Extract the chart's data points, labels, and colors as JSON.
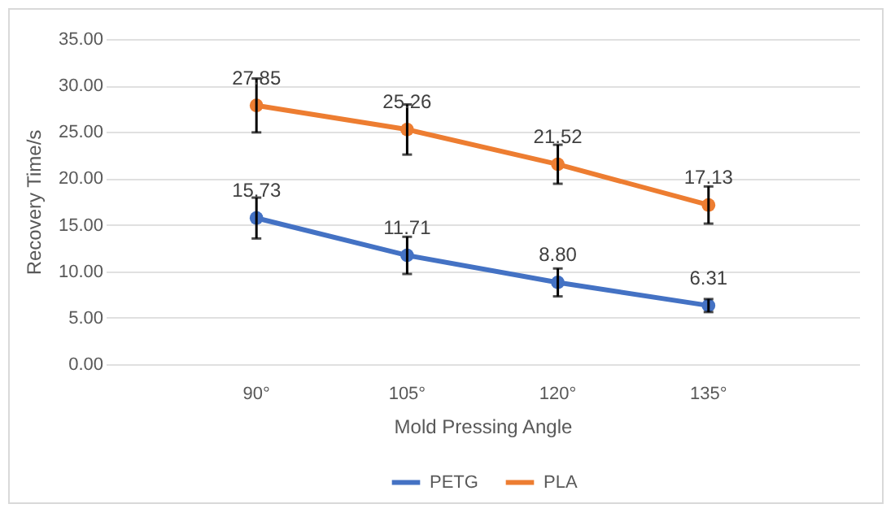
{
  "chart_data": {
    "type": "line",
    "xlabel": "Mold Pressing Angle",
    "ylabel": "Recovery Time/s",
    "categories": [
      "90°",
      "105°",
      "120°",
      "135°"
    ],
    "series": [
      {
        "name": "PETG",
        "color": "#4472c4",
        "values": [
          15.73,
          11.71,
          8.8,
          6.31
        ],
        "errors": [
          2.2,
          2.0,
          1.5,
          0.7
        ],
        "value_labels": [
          "15.73",
          "11.71",
          "8.80",
          "6.31"
        ]
      },
      {
        "name": "PLA",
        "color": "#ed7d31",
        "values": [
          27.85,
          25.26,
          21.52,
          17.13
        ],
        "errors": [
          2.9,
          2.7,
          2.1,
          2.0
        ],
        "value_labels": [
          "27.85",
          "25.26",
          "21.52",
          "17.13"
        ]
      }
    ],
    "ylim": [
      0,
      35
    ],
    "yticks": [
      {
        "value": 0,
        "label": "0.00"
      },
      {
        "value": 5,
        "label": "5.00"
      },
      {
        "value": 10,
        "label": "10.00"
      },
      {
        "value": 15,
        "label": "15.00"
      },
      {
        "value": 20,
        "label": "20.00"
      },
      {
        "value": 25,
        "label": "25.00"
      },
      {
        "value": 30,
        "label": "30.00"
      },
      {
        "value": 35,
        "label": "35.00"
      }
    ],
    "grid": "y",
    "legend": "bottom",
    "marker": "circle",
    "line_style": "solid"
  }
}
